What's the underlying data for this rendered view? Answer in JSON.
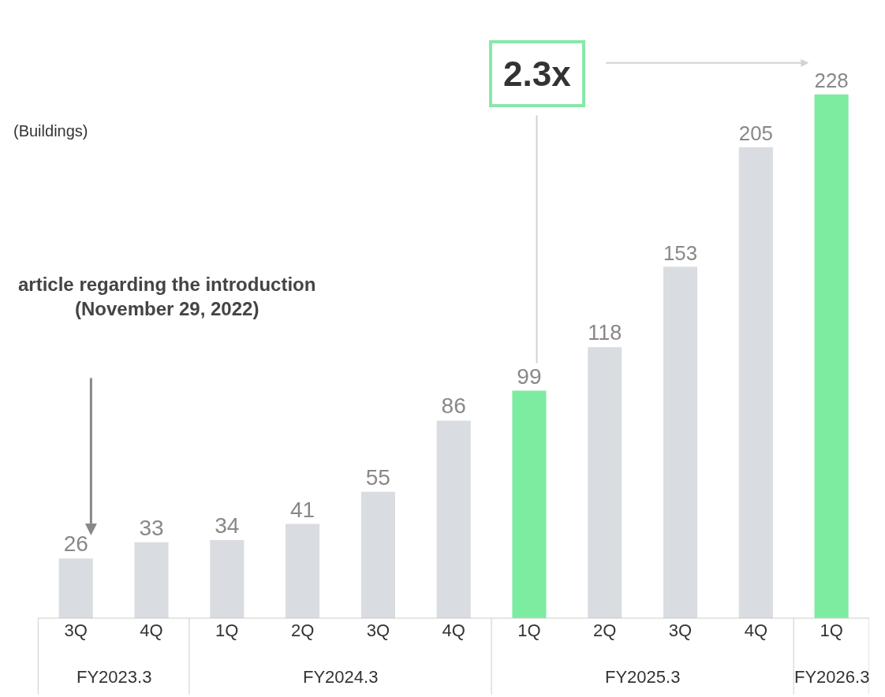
{
  "chart_data": {
    "type": "bar",
    "data_labels": true,
    "categories": [
      "3Q",
      "4Q",
      "1Q",
      "2Q",
      "3Q",
      "4Q",
      "1Q",
      "2Q",
      "3Q",
      "4Q",
      "1Q"
    ],
    "values": [
      26,
      33,
      34,
      41,
      55,
      86,
      99,
      118,
      153,
      205,
      228
    ],
    "colors": [
      "#d9dce0",
      "#d9dce0",
      "#d9dce0",
      "#d9dce0",
      "#d9dce0",
      "#d9dce0",
      "#7ceca0",
      "#d9dce0",
      "#d9dce0",
      "#d9dce0",
      "#7ceca0"
    ],
    "legend": false,
    "annotations": [
      "(Buildings)",
      "article regarding the introduction (November 29, 2022)",
      "2.3x",
      "FY2023.3",
      "FY2024.3",
      "FY2025.3",
      "FY2026.3"
    ]
  }
}
